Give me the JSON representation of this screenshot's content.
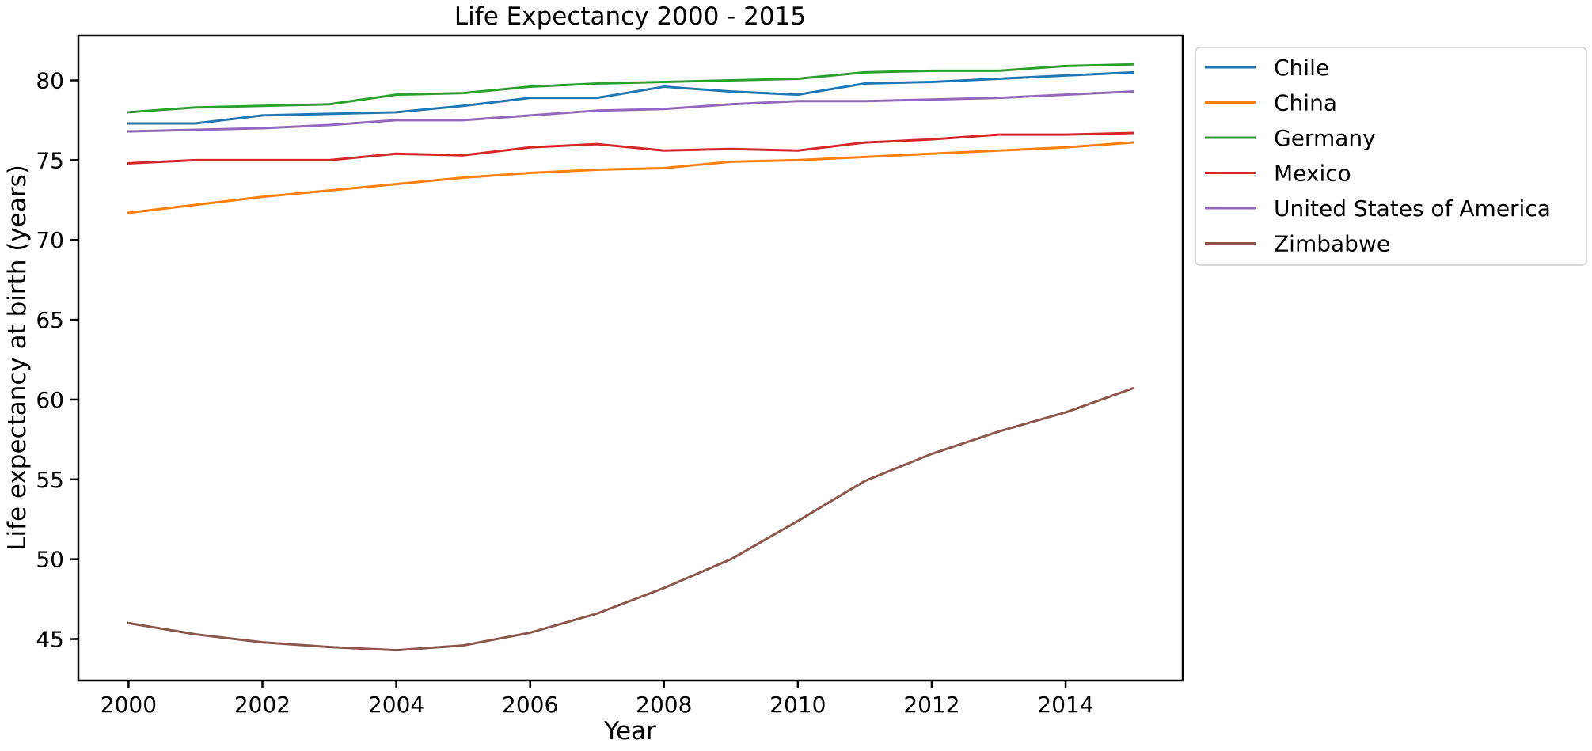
{
  "chart_data": {
    "type": "line",
    "title": "Life Expectancy 2000 - 2015",
    "xlabel": "Year",
    "ylabel": "Life expectancy at birth (years)",
    "x": [
      2000,
      2001,
      2002,
      2003,
      2004,
      2005,
      2006,
      2007,
      2008,
      2009,
      2010,
      2011,
      2012,
      2013,
      2014,
      2015
    ],
    "xlim": [
      1999.25,
      2015.75
    ],
    "ylim": [
      42.4,
      82.8
    ],
    "xticks": [
      2000,
      2002,
      2004,
      2006,
      2008,
      2010,
      2012,
      2014
    ],
    "xtick_labels": [
      "2000",
      "2002",
      "2004",
      "2006",
      "2008",
      "2010",
      "2012",
      "2014"
    ],
    "yticks": [
      45,
      50,
      55,
      60,
      65,
      70,
      75,
      80
    ],
    "ytick_labels": [
      "45",
      "50",
      "55",
      "60",
      "65",
      "70",
      "75",
      "80"
    ],
    "grid": false,
    "legend_position": "outside-upper-right",
    "series": [
      {
        "name": "Chile",
        "color": "#1f77b4",
        "values": [
          77.3,
          77.3,
          77.8,
          77.9,
          78.0,
          78.4,
          78.9,
          78.9,
          79.6,
          79.3,
          79.1,
          79.8,
          79.9,
          80.1,
          80.3,
          80.5
        ]
      },
      {
        "name": "China",
        "color": "#ff7f0e",
        "values": [
          71.7,
          72.2,
          72.7,
          73.1,
          73.5,
          73.9,
          74.2,
          74.4,
          74.5,
          74.9,
          75.0,
          75.2,
          75.4,
          75.6,
          75.8,
          76.1
        ]
      },
      {
        "name": "Germany",
        "color": "#2ca02c",
        "values": [
          78.0,
          78.3,
          78.4,
          78.5,
          79.1,
          79.2,
          79.6,
          79.8,
          79.9,
          80.0,
          80.1,
          80.5,
          80.6,
          80.6,
          80.9,
          81.0
        ]
      },
      {
        "name": "Mexico",
        "color": "#d62728",
        "values": [
          74.8,
          75.0,
          75.0,
          75.0,
          75.4,
          75.3,
          75.8,
          76.0,
          75.6,
          75.7,
          75.6,
          76.1,
          76.3,
          76.6,
          76.6,
          76.7
        ]
      },
      {
        "name": "United States of America",
        "color": "#9467bd",
        "values": [
          76.8,
          76.9,
          77.0,
          77.2,
          77.5,
          77.5,
          77.8,
          78.1,
          78.2,
          78.5,
          78.7,
          78.7,
          78.8,
          78.9,
          79.1,
          79.3
        ]
      },
      {
        "name": "Zimbabwe",
        "color": "#8c564b",
        "values": [
          46.0,
          45.3,
          44.8,
          44.5,
          44.3,
          44.6,
          45.4,
          46.6,
          48.2,
          50.0,
          52.4,
          54.9,
          56.6,
          58.0,
          59.2,
          60.7
        ]
      }
    ]
  }
}
